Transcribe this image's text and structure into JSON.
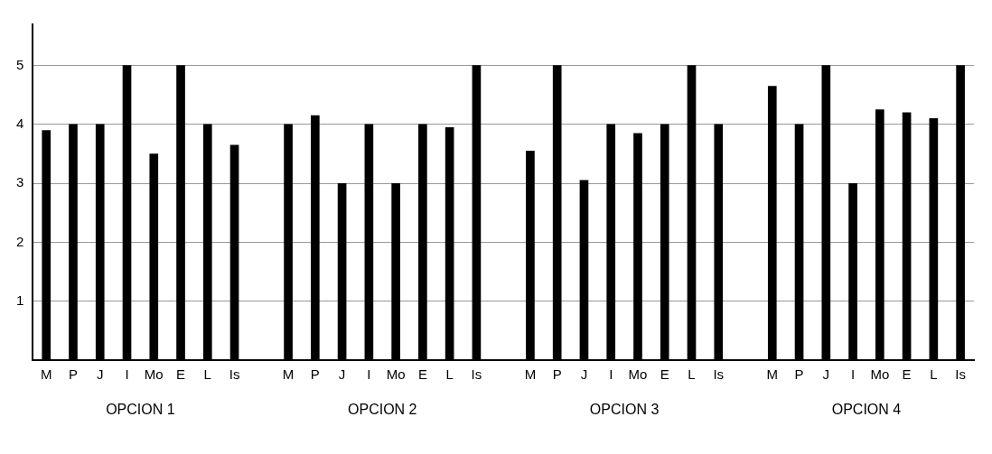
{
  "chart_data": {
    "type": "bar",
    "categories": [
      "M",
      "P",
      "J",
      "I",
      "Mo",
      "E",
      "L",
      "Is",
      null,
      "M",
      "P",
      "J",
      "I",
      "Mo",
      "E",
      "L",
      "Is",
      null,
      "M",
      "P",
      "J",
      "I",
      "Mo",
      "E",
      "L",
      "Is",
      null,
      "M",
      "P",
      "J",
      "I",
      "Mo",
      "E",
      "L",
      "Is"
    ],
    "values": [
      3.9,
      4.0,
      4.0,
      5.0,
      3.5,
      5.0,
      4.0,
      3.65,
      null,
      4.0,
      4.15,
      3.0,
      4.0,
      3.0,
      4.0,
      3.95,
      5.0,
      null,
      3.55,
      5.0,
      3.05,
      4.0,
      3.85,
      4.0,
      5.0,
      4.0,
      null,
      4.65,
      4.0,
      5.0,
      3.0,
      4.25,
      4.2,
      4.1,
      5.0
    ],
    "color": "#000000",
    "ylim": [
      0,
      5.7
    ],
    "yticks": [
      {
        "value": 0,
        "label": null
      },
      1,
      2,
      3,
      4,
      5
    ],
    "grid": "y",
    "annotations": [
      "OPCION 1",
      "OPCION 2",
      "OPCION 3",
      "OPCION 4"
    ]
  }
}
